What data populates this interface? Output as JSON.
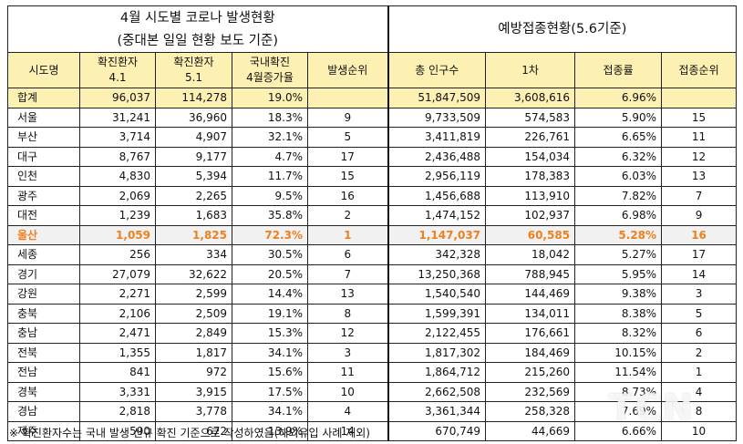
{
  "title_left_1": "4월 시도별 코로나 발생현황",
  "title_left_2": "(중대본 일일 현황 보도 기준)",
  "title_right": "예방접종현황(5.6기준)",
  "headers": {
    "region": "시도명",
    "confirmed_41_a": "확진환자",
    "confirmed_41_b": "4.1",
    "confirmed_51_a": "확진환자",
    "confirmed_51_b": "5.1",
    "increase_a": "국내확진",
    "increase_b": "4월증가율",
    "rank": "발생순위",
    "population": "총 인구수",
    "first_dose": "1차",
    "vac_rate": "접종률",
    "vac_rank": "접종순위"
  },
  "rows": [
    {
      "region": "합계",
      "c41": "96,037",
      "c51": "114,278",
      "inc": "19.0%",
      "rank": "",
      "pop": "51,847,509",
      "first": "3,608,616",
      "rate": "6.96%",
      "vrank": ""
    },
    {
      "region": "서울",
      "c41": "31,241",
      "c51": "36,960",
      "inc": "18.3%",
      "rank": "9",
      "pop": "9,733,509",
      "first": "574,583",
      "rate": "5.90%",
      "vrank": "15"
    },
    {
      "region": "부산",
      "c41": "3,714",
      "c51": "4,907",
      "inc": "32.1%",
      "rank": "5",
      "pop": "3,411,819",
      "first": "226,761",
      "rate": "6.65%",
      "vrank": "11"
    },
    {
      "region": "대구",
      "c41": "8,767",
      "c51": "9,177",
      "inc": "4.7%",
      "rank": "17",
      "pop": "2,436,488",
      "first": "154,034",
      "rate": "6.32%",
      "vrank": "12"
    },
    {
      "region": "인천",
      "c41": "4,830",
      "c51": "5,394",
      "inc": "11.7%",
      "rank": "15",
      "pop": "2,956,119",
      "first": "178,383",
      "rate": "6.03%",
      "vrank": "13"
    },
    {
      "region": "광주",
      "c41": "2,069",
      "c51": "2,265",
      "inc": "9.5%",
      "rank": "16",
      "pop": "1,456,688",
      "first": "113,910",
      "rate": "7.82%",
      "vrank": "7"
    },
    {
      "region": "대전",
      "c41": "1,239",
      "c51": "1,683",
      "inc": "35.8%",
      "rank": "2",
      "pop": "1,474,152",
      "first": "102,937",
      "rate": "6.98%",
      "vrank": "9"
    },
    {
      "region": "울산",
      "c41": "1,059",
      "c51": "1,825",
      "inc": "72.3%",
      "rank": "1",
      "pop": "1,147,037",
      "first": "60,585",
      "rate": "5.28%",
      "vrank": "16"
    },
    {
      "region": "세종",
      "c41": "256",
      "c51": "334",
      "inc": "30.5%",
      "rank": "6",
      "pop": "342,328",
      "first": "18,042",
      "rate": "5.27%",
      "vrank": "17"
    },
    {
      "region": "경기",
      "c41": "27,079",
      "c51": "32,622",
      "inc": "20.5%",
      "rank": "7",
      "pop": "13,250,368",
      "first": "788,945",
      "rate": "5.95%",
      "vrank": "14"
    },
    {
      "region": "강원",
      "c41": "2,271",
      "c51": "2,599",
      "inc": "14.4%",
      "rank": "13",
      "pop": "1,540,540",
      "first": "144,469",
      "rate": "9.38%",
      "vrank": "3"
    },
    {
      "region": "충북",
      "c41": "2,106",
      "c51": "2,509",
      "inc": "19.1%",
      "rank": "8",
      "pop": "1,599,391",
      "first": "134,011",
      "rate": "8.38%",
      "vrank": "5"
    },
    {
      "region": "충남",
      "c41": "2,471",
      "c51": "2,849",
      "inc": "15.3%",
      "rank": "12",
      "pop": "2,122,455",
      "first": "176,661",
      "rate": "8.32%",
      "vrank": "6"
    },
    {
      "region": "전북",
      "c41": "1,355",
      "c51": "1,817",
      "inc": "34.1%",
      "rank": "3",
      "pop": "1,817,302",
      "first": "184,469",
      "rate": "10.15%",
      "vrank": "2"
    },
    {
      "region": "전남",
      "c41": "841",
      "c51": "972",
      "inc": "15.6%",
      "rank": "11",
      "pop": "1,864,712",
      "first": "215,260",
      "rate": "11.54%",
      "vrank": "1"
    },
    {
      "region": "경북",
      "c41": "3,331",
      "c51": "3,915",
      "inc": "17.5%",
      "rank": "10",
      "pop": "2,662,508",
      "first": "232,569",
      "rate": "8.73%",
      "vrank": "4"
    },
    {
      "region": "경남",
      "c41": "2,818",
      "c51": "3,778",
      "inc": "34.1%",
      "rank": "4",
      "pop": "3,361,344",
      "first": "258,328",
      "rate": "7.69%",
      "vrank": "8"
    },
    {
      "region": "제주",
      "c41": "590",
      "c51": "672",
      "inc": "13.9%",
      "rank": "14",
      "pop": "670,749",
      "first": "44,669",
      "rate": "6.66%",
      "vrank": "10"
    }
  ],
  "footnote": "※ 확진환자수는 국내 발생 신규 확진 기준으로 작성하였음(해외유입 사례 제외)",
  "watermark": "TCN",
  "colors": {
    "header_bg": "#fdf0b3",
    "highlight_text": "#f07f1e",
    "highlight_bg": "#f1f1f1"
  }
}
